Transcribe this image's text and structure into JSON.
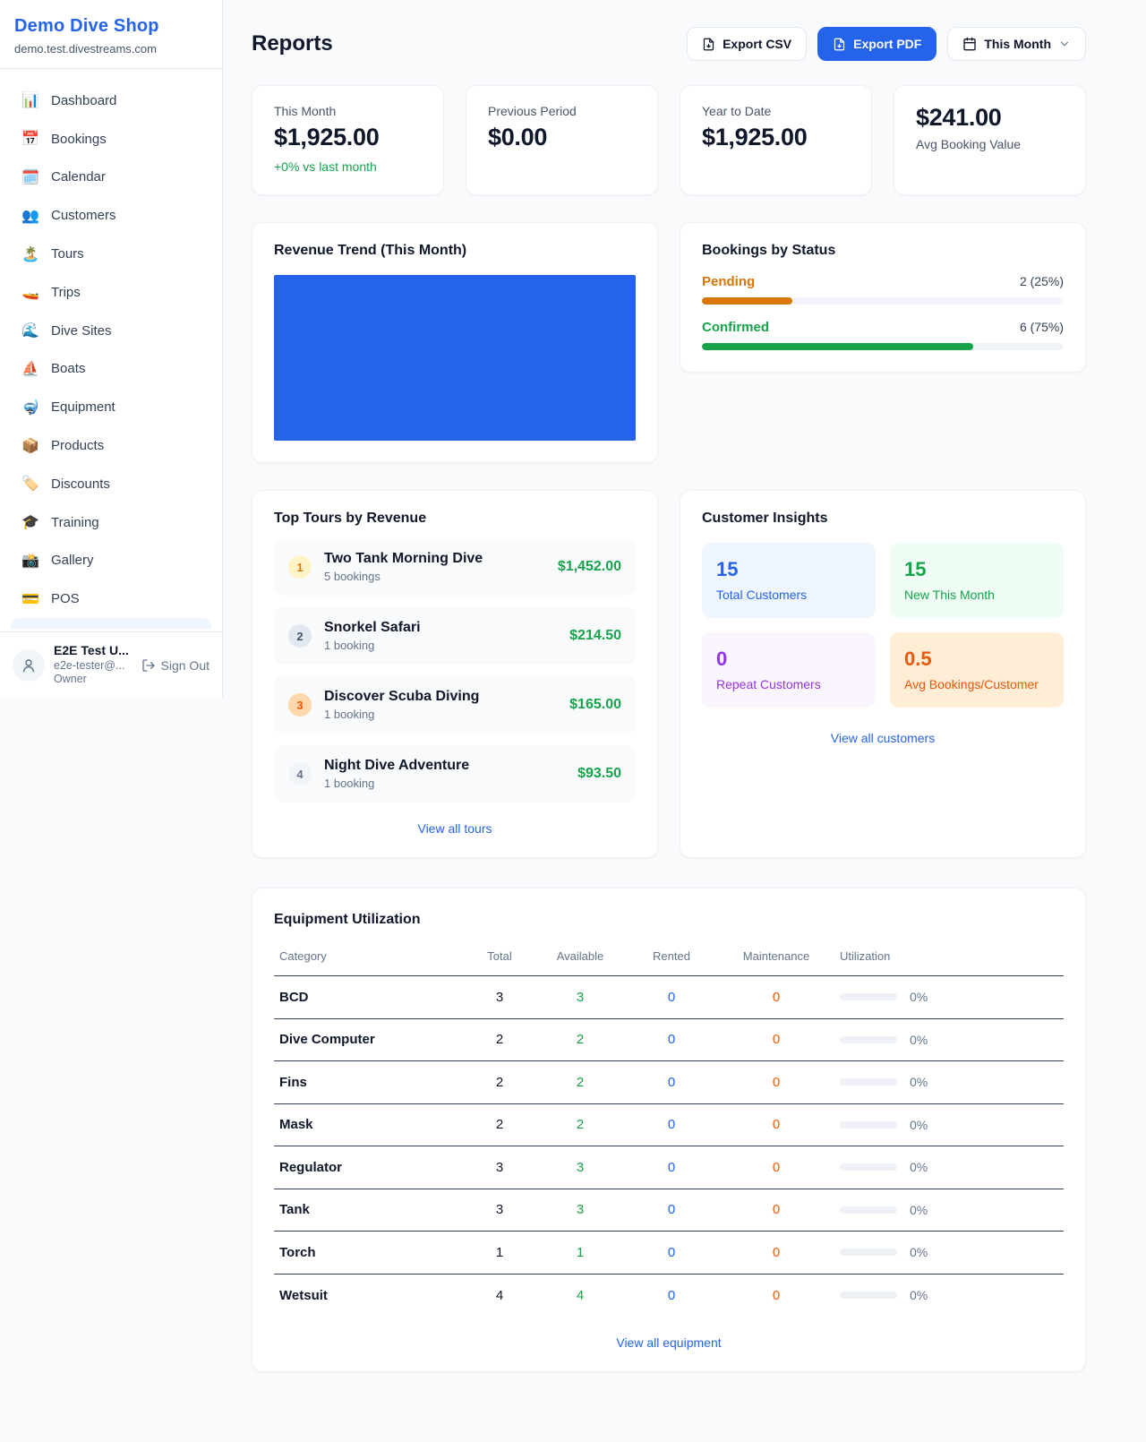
{
  "sidebar": {
    "shop_name": "Demo Dive Shop",
    "domain": "demo.test.divestreams.com",
    "nav": [
      {
        "label": "Dashboard",
        "icon": "bar-chart-icon",
        "glyph": "📊"
      },
      {
        "label": "Bookings",
        "icon": "calendar-icon",
        "glyph": "📅"
      },
      {
        "label": "Calendar",
        "icon": "spiral-calendar-icon",
        "glyph": "🗓️"
      },
      {
        "label": "Customers",
        "icon": "people-icon",
        "glyph": "👥"
      },
      {
        "label": "Tours",
        "icon": "island-icon",
        "glyph": "🏝️"
      },
      {
        "label": "Trips",
        "icon": "speedboat-icon",
        "glyph": "🚤"
      },
      {
        "label": "Dive Sites",
        "icon": "wave-icon",
        "glyph": "🌊"
      },
      {
        "label": "Boats",
        "icon": "sailboat-icon",
        "glyph": "⛵"
      },
      {
        "label": "Equipment",
        "icon": "diving-mask-icon",
        "glyph": "🤿"
      },
      {
        "label": "Products",
        "icon": "package-icon",
        "glyph": "📦"
      },
      {
        "label": "Discounts",
        "icon": "tag-icon",
        "glyph": "🏷️"
      },
      {
        "label": "Training",
        "icon": "graduation-cap-icon",
        "glyph": "🎓"
      },
      {
        "label": "Gallery",
        "icon": "camera-icon",
        "glyph": "📸"
      },
      {
        "label": "POS",
        "icon": "credit-card-icon",
        "glyph": "💳"
      }
    ],
    "user": {
      "name": "E2E Test U...",
      "email": "e2e-tester@...",
      "role": "Owner",
      "sign_out": "Sign Out"
    }
  },
  "header": {
    "title": "Reports",
    "export_csv": "Export CSV",
    "export_pdf": "Export PDF",
    "period": "This Month"
  },
  "stats": [
    {
      "label": "This Month",
      "value": "$1,925.00",
      "delta": "+0% vs last month"
    },
    {
      "label": "Previous Period",
      "value": "$0.00"
    },
    {
      "label": "Year to Date",
      "value": "$1,925.00"
    },
    {
      "label": "Avg Booking Value",
      "value": "$241.00"
    }
  ],
  "revenue_trend": {
    "title": "Revenue Trend (This Month)",
    "bar_color": "#2563eb"
  },
  "bookings_by_status": {
    "title": "Bookings by Status",
    "items": [
      {
        "label": "Pending",
        "value": "2 (25%)",
        "percent": 25,
        "color": "#d97706"
      },
      {
        "label": "Confirmed",
        "value": "6 (75%)",
        "percent": 75,
        "color": "#16a34a"
      }
    ]
  },
  "top_tours": {
    "title": "Top Tours by Revenue",
    "view_all": "View all tours",
    "items": [
      {
        "rank": "1",
        "name": "Two Tank Morning Dive",
        "bookings": "5 bookings",
        "amount": "$1,452.00"
      },
      {
        "rank": "2",
        "name": "Snorkel Safari",
        "bookings": "1 booking",
        "amount": "$214.50"
      },
      {
        "rank": "3",
        "name": "Discover Scuba Diving",
        "bookings": "1 booking",
        "amount": "$165.00"
      },
      {
        "rank": "4",
        "name": "Night Dive Adventure",
        "bookings": "1 booking",
        "amount": "$93.50"
      }
    ]
  },
  "customer_insights": {
    "title": "Customer Insights",
    "view_all": "View all customers",
    "tiles": [
      {
        "value": "15",
        "label": "Total Customers",
        "color": "#2563eb"
      },
      {
        "value": "15",
        "label": "New This Month",
        "color": "#16a34a"
      },
      {
        "value": "0",
        "label": "Repeat Customers",
        "color": "#9333ea"
      },
      {
        "value": "0.5",
        "label": "Avg Bookings/Customer",
        "color": "#ea580c"
      }
    ]
  },
  "equipment": {
    "title": "Equipment Utilization",
    "view_all": "View all equipment",
    "columns": [
      "Category",
      "Total",
      "Available",
      "Rented",
      "Maintenance",
      "Utilization"
    ],
    "rows": [
      {
        "category": "BCD",
        "total": "3",
        "available": "3",
        "rented": "0",
        "maintenance": "0",
        "utilization": "0%"
      },
      {
        "category": "Dive Computer",
        "total": "2",
        "available": "2",
        "rented": "0",
        "maintenance": "0",
        "utilization": "0%"
      },
      {
        "category": "Fins",
        "total": "2",
        "available": "2",
        "rented": "0",
        "maintenance": "0",
        "utilization": "0%"
      },
      {
        "category": "Mask",
        "total": "2",
        "available": "2",
        "rented": "0",
        "maintenance": "0",
        "utilization": "0%"
      },
      {
        "category": "Regulator",
        "total": "3",
        "available": "3",
        "rented": "0",
        "maintenance": "0",
        "utilization": "0%"
      },
      {
        "category": "Tank",
        "total": "3",
        "available": "3",
        "rented": "0",
        "maintenance": "0",
        "utilization": "0%"
      },
      {
        "category": "Torch",
        "total": "1",
        "available": "1",
        "rented": "0",
        "maintenance": "0",
        "utilization": "0%"
      },
      {
        "category": "Wetsuit",
        "total": "4",
        "available": "4",
        "rented": "0",
        "maintenance": "0",
        "utilization": "0%"
      }
    ]
  }
}
